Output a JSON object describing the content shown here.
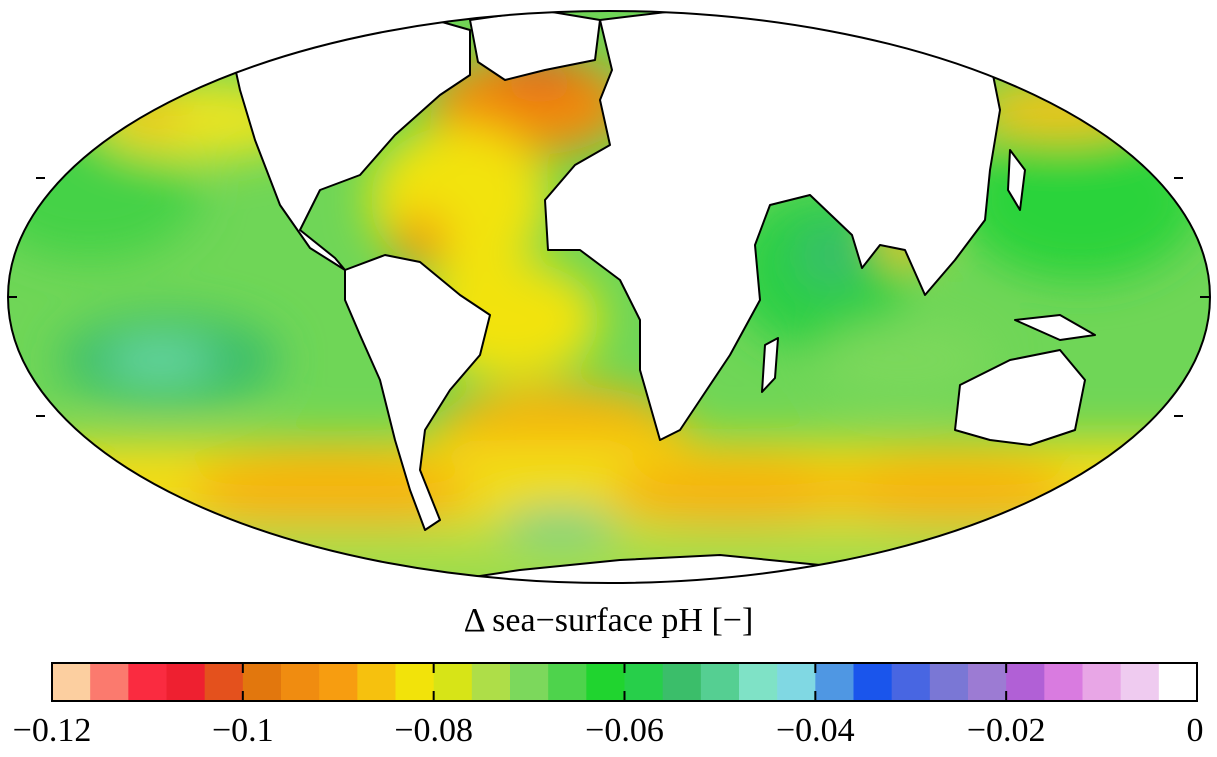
{
  "map": {
    "projection": "mollweide",
    "land_color": "#ffffff",
    "coast_color": "#000000"
  },
  "colorbar": {
    "title": "Δ sea−surface pH [−]",
    "range": [
      -0.12,
      0
    ],
    "ticks": [
      {
        "value": -0.12,
        "label": "−0.12"
      },
      {
        "value": -0.1,
        "label": "−0.1"
      },
      {
        "value": -0.08,
        "label": "−0.08"
      },
      {
        "value": -0.06,
        "label": "−0.06"
      },
      {
        "value": -0.04,
        "label": "−0.04"
      },
      {
        "value": -0.02,
        "label": "−0.02"
      },
      {
        "value": 0,
        "label": "0"
      }
    ],
    "colors": [
      "#fccfa0",
      "#fb7a6e",
      "#fa2b40",
      "#ee2030",
      "#e4511d",
      "#e2770d",
      "#f08c10",
      "#f79d10",
      "#f6c10e",
      "#f2e30a",
      "#d7e417",
      "#aede48",
      "#7cd85c",
      "#4ed34c",
      "#20d42f",
      "#27cf4a",
      "#3bbe6a",
      "#55cf92",
      "#7fe2c6",
      "#80d8e3",
      "#4f97e3",
      "#1a55ec",
      "#4866e2",
      "#7a77d5",
      "#9c7bd3",
      "#b160d6",
      "#d97be0",
      "#e8a6e6",
      "#efcbf0",
      "#ffffff"
    ]
  }
}
